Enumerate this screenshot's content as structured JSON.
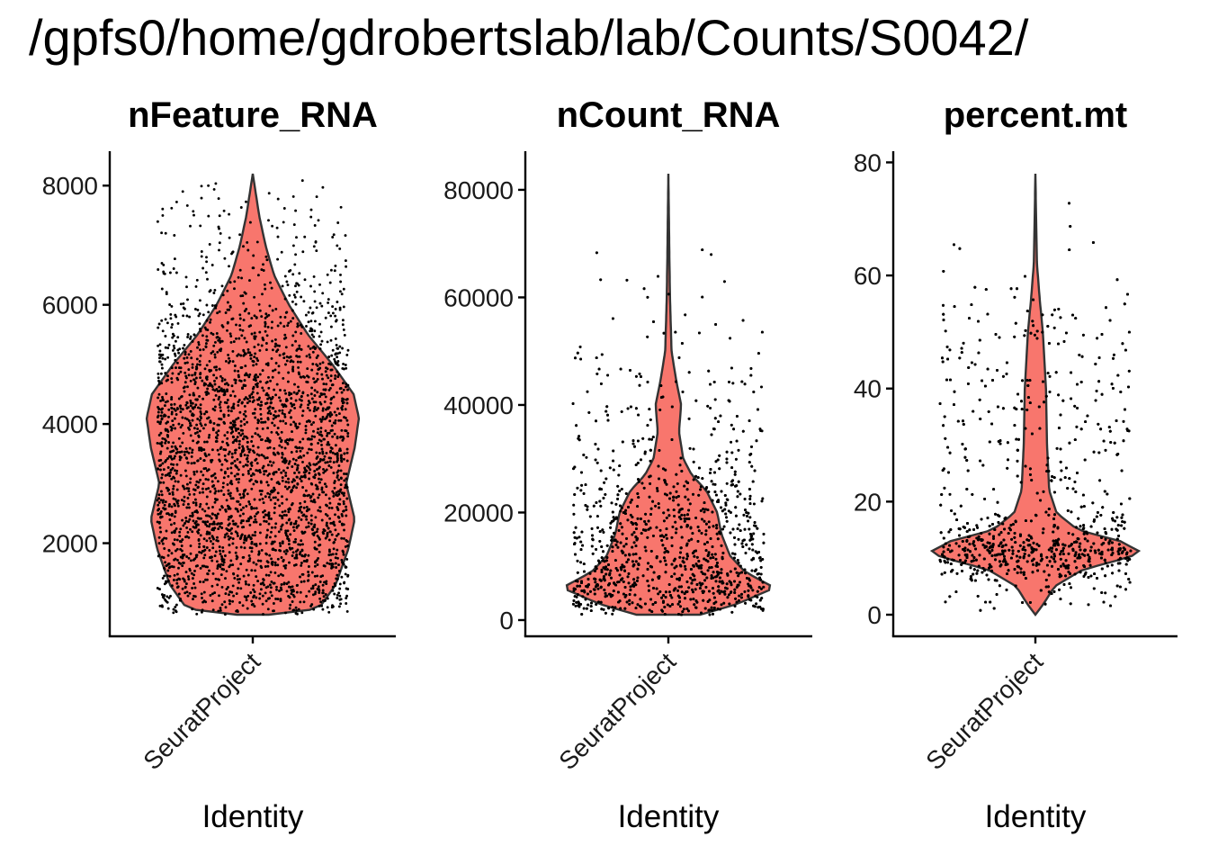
{
  "title": "/gpfs0/home/gdrobertslab/lab/Counts/S0042/",
  "colors": {
    "violin_fill": "#F8766D",
    "violin_stroke": "#333333",
    "point": "#000000",
    "axis": "#000000"
  },
  "chart_data": [
    {
      "type": "violin",
      "title": "nFeature_RNA",
      "xlabel": "Identity",
      "ylabel": "",
      "categories": [
        "SeuratProject"
      ],
      "ylim": [
        800,
        8200
      ],
      "yticks": [
        2000,
        4000,
        6000,
        8000
      ],
      "ytick_labels": [
        "2000",
        "4000",
        "6000",
        "8000"
      ],
      "point_count": 3000,
      "density_profile": [
        [
          800,
          0.15
        ],
        [
          900,
          0.62
        ],
        [
          1300,
          0.78
        ],
        [
          1900,
          0.9
        ],
        [
          2400,
          0.96
        ],
        [
          3000,
          0.88
        ],
        [
          3600,
          0.96
        ],
        [
          4100,
          1.0
        ],
        [
          4500,
          0.95
        ],
        [
          5000,
          0.75
        ],
        [
          5500,
          0.52
        ],
        [
          6000,
          0.34
        ],
        [
          6500,
          0.2
        ],
        [
          7000,
          0.12
        ],
        [
          7500,
          0.06
        ],
        [
          8200,
          0.0
        ]
      ],
      "summary": {
        "min": 800,
        "max": 8200,
        "mode": 4200
      }
    },
    {
      "type": "violin",
      "title": "nCount_RNA",
      "xlabel": "Identity",
      "ylabel": "",
      "categories": [
        "SeuratProject"
      ],
      "ylim": [
        1000,
        83000
      ],
      "yticks": [
        0,
        20000,
        40000,
        60000,
        80000
      ],
      "ytick_labels": [
        "0",
        "20000",
        "40000",
        "60000",
        "80000"
      ],
      "point_count": 3000,
      "density_profile": [
        [
          1000,
          0.3
        ],
        [
          3000,
          0.65
        ],
        [
          6000,
          1.0
        ],
        [
          9000,
          0.72
        ],
        [
          12000,
          0.58
        ],
        [
          16000,
          0.5
        ],
        [
          20000,
          0.46
        ],
        [
          24000,
          0.36
        ],
        [
          27000,
          0.22
        ],
        [
          30000,
          0.14
        ],
        [
          35000,
          0.1
        ],
        [
          40000,
          0.12
        ],
        [
          45000,
          0.07
        ],
        [
          50000,
          0.03
        ],
        [
          60000,
          0.015
        ],
        [
          70000,
          0.008
        ],
        [
          83000,
          0.0
        ]
      ],
      "summary": {
        "min": 1000,
        "max": 83000,
        "mode": 6000
      }
    },
    {
      "type": "violin",
      "title": "percent.mt",
      "xlabel": "Identity",
      "ylabel": "",
      "categories": [
        "SeuratProject"
      ],
      "ylim": [
        0,
        78
      ],
      "yticks": [
        0,
        20,
        40,
        60,
        80
      ],
      "ytick_labels": [
        "0",
        "20",
        "40",
        "60",
        "80"
      ],
      "point_count": 3000,
      "density_profile": [
        [
          0,
          0.0
        ],
        [
          2,
          0.08
        ],
        [
          5,
          0.18
        ],
        [
          8,
          0.45
        ],
        [
          10,
          0.85
        ],
        [
          11,
          1.0
        ],
        [
          13,
          0.8
        ],
        [
          15,
          0.4
        ],
        [
          18,
          0.2
        ],
        [
          22,
          0.13
        ],
        [
          30,
          0.11
        ],
        [
          40,
          0.1
        ],
        [
          50,
          0.07
        ],
        [
          56,
          0.04
        ],
        [
          62,
          0.015
        ],
        [
          70,
          0.007
        ],
        [
          78,
          0.0
        ]
      ],
      "summary": {
        "min": 0,
        "max": 78,
        "mode": 11
      }
    }
  ]
}
